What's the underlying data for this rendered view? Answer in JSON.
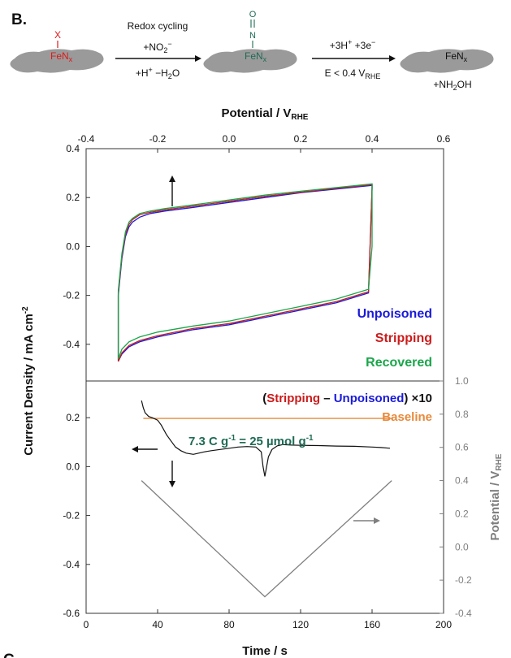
{
  "panel": {
    "label": "B.",
    "next_label": "C"
  },
  "scheme": {
    "left_x": "X",
    "left_fe": "FeN",
    "left_sub": "x",
    "step1_top": "Redox cycling",
    "step1_mid": "+NO",
    "step1_mid_sub": "2",
    "step1_mid_sup": "−",
    "step1_bot_a": "+H",
    "step1_bot_sup": "+",
    "step1_bot_b": " −H",
    "step1_bot_sub": "2",
    "step1_bot_c": "O",
    "mid_o": "O",
    "mid_bond": "II",
    "mid_n": "N",
    "mid_fe": "FeN",
    "mid_sub": "x",
    "step2_top_a": "+3H",
    "step2_top_sup1": "+",
    "step2_top_b": " +3e",
    "step2_top_sup2": "−",
    "step2_bot_a": "E < 0.4 V",
    "step2_bot_sub": "RHE",
    "right_fe": "FeN",
    "right_sub": "x",
    "right_prod_a": "+NH",
    "right_prod_sub": "2",
    "right_prod_b": "OH"
  },
  "chart_data": [
    {
      "type": "line",
      "xlabel": "Potential / V",
      "xlabel_sub": "RHE",
      "ylabel": "Current Density / mA cm",
      "ylabel_sup": "-2",
      "xlim": [
        -0.4,
        0.6
      ],
      "ylim": [
        -0.55,
        0.4
      ],
      "xticks": [
        "-0.4",
        "-0.2",
        "0.0",
        "0.2",
        "0.4",
        "0.6"
      ],
      "yticks": [
        "-0.4",
        "-0.2",
        "0.0",
        "0.2",
        "0.4"
      ],
      "xtick_values": [
        -0.4,
        -0.2,
        0.0,
        0.2,
        0.4,
        0.6
      ],
      "ytick_values": [
        -0.4,
        -0.2,
        0.0,
        0.2,
        0.4
      ],
      "series": [
        {
          "name": "Unpoisoned",
          "color": "#1a1adb",
          "x": [
            -0.31,
            -0.31,
            -0.3,
            -0.29,
            -0.28,
            -0.27,
            -0.25,
            -0.22,
            -0.18,
            -0.1,
            0.0,
            0.1,
            0.2,
            0.3,
            0.4,
            0.4,
            0.39,
            0.3,
            0.2,
            0.1,
            0.0,
            -0.1,
            -0.2,
            -0.25,
            -0.28,
            -0.3,
            -0.31
          ],
          "y": [
            -0.47,
            -0.2,
            -0.05,
            0.04,
            0.08,
            0.1,
            0.12,
            0.135,
            0.145,
            0.16,
            0.18,
            0.2,
            0.22,
            0.235,
            0.25,
            0.24,
            -0.19,
            -0.23,
            -0.26,
            -0.29,
            -0.32,
            -0.34,
            -0.37,
            -0.39,
            -0.41,
            -0.44,
            -0.47
          ]
        },
        {
          "name": "Stripping",
          "color": "#cc1b1b",
          "x": [
            -0.31,
            -0.31,
            -0.3,
            -0.29,
            -0.28,
            -0.27,
            -0.25,
            -0.22,
            -0.18,
            -0.1,
            0.0,
            0.1,
            0.2,
            0.3,
            0.4,
            0.4,
            0.39,
            0.3,
            0.2,
            0.1,
            0.0,
            -0.1,
            -0.2,
            -0.25,
            -0.28,
            -0.3,
            -0.31
          ],
          "y": [
            -0.47,
            -0.19,
            -0.04,
            0.05,
            0.09,
            0.11,
            0.13,
            0.14,
            0.15,
            0.165,
            0.185,
            0.205,
            0.222,
            0.238,
            0.253,
            0.24,
            -0.185,
            -0.225,
            -0.255,
            -0.285,
            -0.315,
            -0.335,
            -0.365,
            -0.385,
            -0.405,
            -0.435,
            -0.47
          ]
        },
        {
          "name": "Recovered",
          "color": "#1aa64a",
          "x": [
            -0.31,
            -0.31,
            -0.3,
            -0.29,
            -0.28,
            -0.27,
            -0.25,
            -0.22,
            -0.18,
            -0.1,
            0.0,
            0.1,
            0.2,
            0.3,
            0.4,
            0.4,
            0.39,
            0.3,
            0.2,
            0.1,
            0.0,
            -0.1,
            -0.2,
            -0.25,
            -0.28,
            -0.3,
            -0.31
          ],
          "y": [
            -0.46,
            -0.18,
            -0.03,
            0.06,
            0.1,
            0.115,
            0.135,
            0.145,
            0.155,
            0.17,
            0.19,
            0.21,
            0.226,
            0.241,
            0.256,
            0.0,
            -0.175,
            -0.215,
            -0.245,
            -0.275,
            -0.305,
            -0.325,
            -0.35,
            -0.37,
            -0.39,
            -0.42,
            -0.46
          ]
        }
      ],
      "legend": [
        "Unpoisoned",
        "Stripping",
        "Recovered"
      ],
      "legend_placement": "bottom-right",
      "annotation_arrow": "up"
    },
    {
      "type": "line",
      "xlabel": "Time / s",
      "ylabel_right": "Potential / V",
      "ylabel_right_sub": "RHE",
      "xlim": [
        0,
        200
      ],
      "ylim": [
        -0.6,
        0.35
      ],
      "ylim_right": [
        -0.4,
        1.0
      ],
      "xticks": [
        "0",
        "40",
        "80",
        "120",
        "160",
        "200"
      ],
      "yticks": [
        "-0.6",
        "-0.4",
        "-0.2",
        "0.0",
        "0.2"
      ],
      "yticks_right": [
        "-0.4",
        "-0.2",
        "0.0",
        "0.2",
        "0.4",
        "0.6",
        "0.8",
        "1.0"
      ],
      "xtick_values": [
        0,
        40,
        80,
        120,
        160,
        200
      ],
      "ytick_values": [
        -0.6,
        -0.4,
        -0.2,
        0.0,
        0.2
      ],
      "ytick_right_values": [
        -0.4,
        -0.2,
        0.0,
        0.2,
        0.4,
        0.6,
        0.8,
        1.0
      ],
      "title_parts": [
        "(",
        "Stripping",
        " – ",
        "Unpoisoned",
        ") ×10"
      ],
      "baseline_label": "Baseline",
      "baseline_value": 0.197,
      "baseline_xrange": [
        32,
        171
      ],
      "charge_label_a": "7.3 C g",
      "charge_sup_a": "-1",
      "charge_label_b": " = 25 µmol g",
      "charge_sup_b": "-1",
      "series": [
        {
          "name": "difference",
          "color": "#111111",
          "x": [
            31,
            32,
            33,
            35,
            37,
            40,
            42,
            45,
            48,
            50,
            53,
            56,
            60,
            63,
            66,
            70,
            75,
            80,
            85,
            90,
            95,
            98,
            99,
            100,
            101,
            102,
            104,
            107,
            110,
            115,
            120,
            130,
            140,
            150,
            160,
            165,
            170
          ],
          "y": [
            0.27,
            0.24,
            0.22,
            0.205,
            0.2,
            0.19,
            0.17,
            0.13,
            0.1,
            0.08,
            0.065,
            0.055,
            0.05,
            0.055,
            0.06,
            0.065,
            0.07,
            0.075,
            0.08,
            0.082,
            0.08,
            0.06,
            0.0,
            -0.04,
            0.0,
            0.04,
            0.07,
            0.085,
            0.09,
            0.088,
            0.087,
            0.086,
            0.084,
            0.083,
            0.08,
            0.078,
            0.075
          ]
        },
        {
          "name": "potential",
          "color": "#7f7f7f",
          "axis": "right",
          "x": [
            31,
            100,
            171
          ],
          "y": [
            0.4,
            -0.3,
            0.4
          ]
        }
      ],
      "annotation_arrows": [
        "left",
        "down",
        "right"
      ]
    }
  ]
}
